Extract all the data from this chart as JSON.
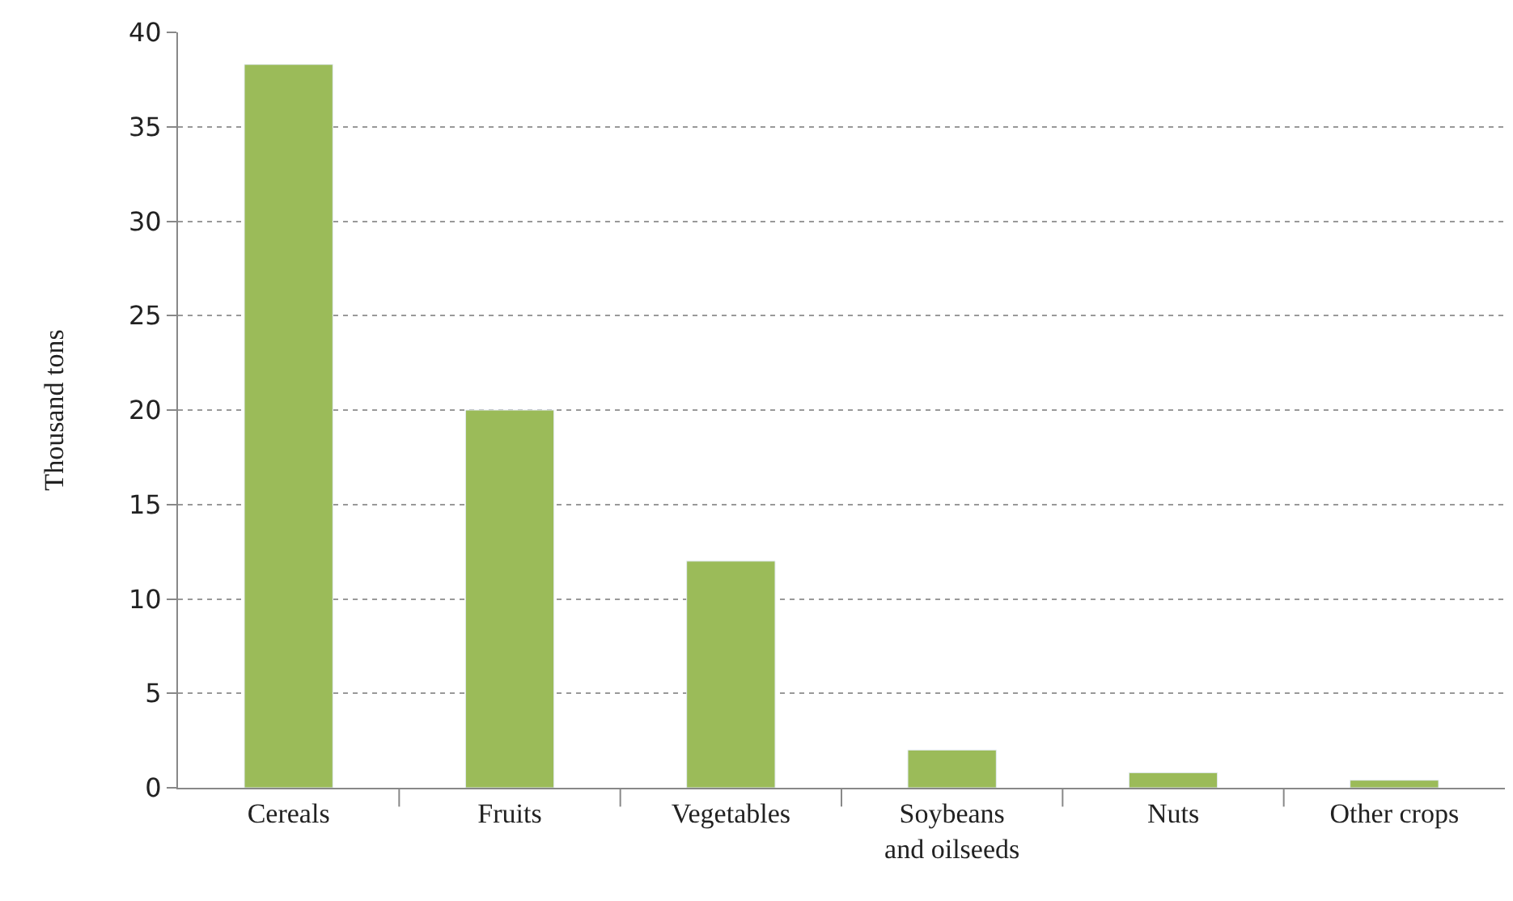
{
  "chart_data": {
    "type": "bar",
    "ylabel": "Thousand tons",
    "categories": [
      "Cereals",
      "Fruits",
      "Vegetables",
      "Soybeans\nand oilseeds",
      "Nuts",
      "Other crops"
    ],
    "values": [
      38.3,
      20,
      12,
      2,
      0.8,
      0.4
    ],
    "color": "#9bbb59",
    "ylim": [
      0,
      40
    ],
    "yticks": [
      0,
      5,
      10,
      15,
      20,
      25,
      30,
      35,
      40
    ],
    "grid": "y"
  }
}
